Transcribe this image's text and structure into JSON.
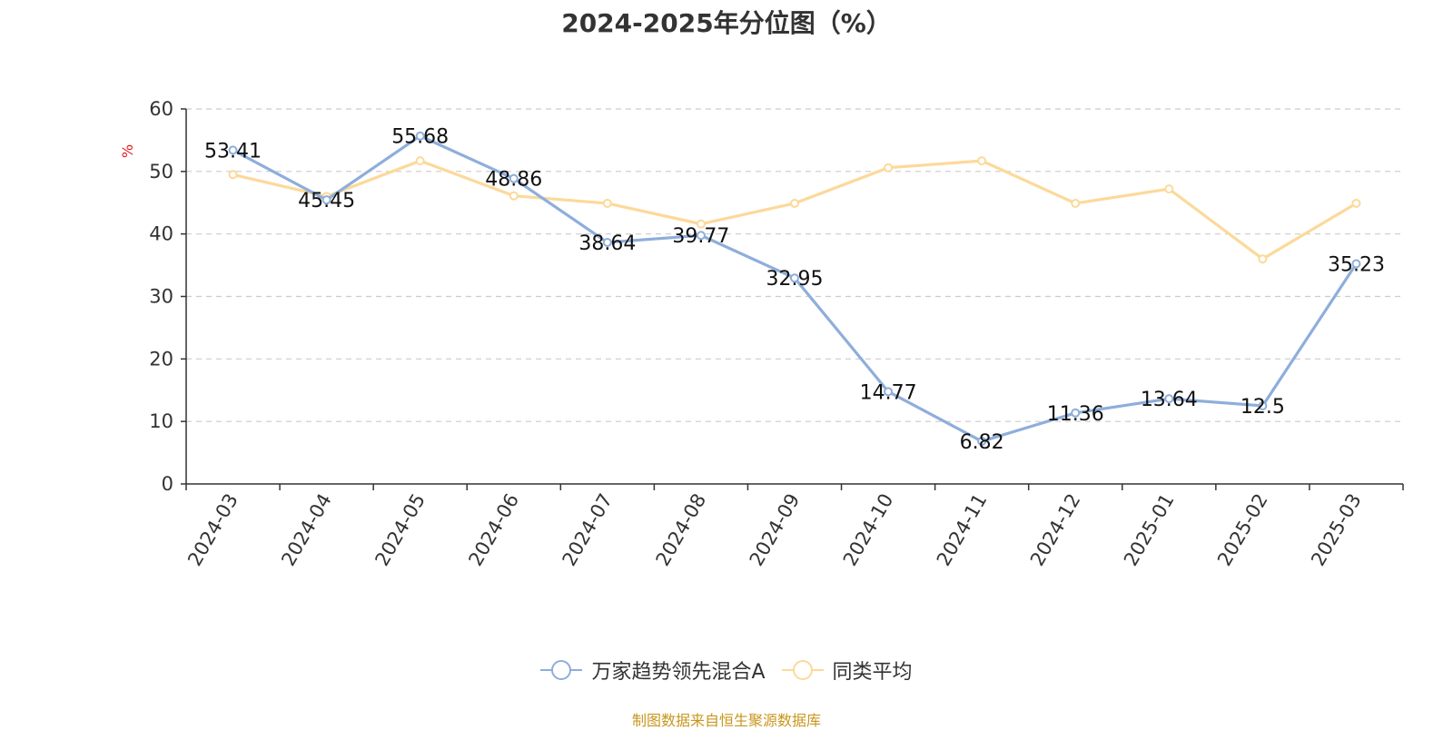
{
  "chart_data": {
    "type": "line",
    "title": "2024-2025年分位图（%）",
    "ylabel": "%",
    "xlabel": "",
    "categories": [
      "2024-03",
      "2024-04",
      "2024-05",
      "2024-06",
      "2024-07",
      "2024-08",
      "2024-09",
      "2024-10",
      "2024-11",
      "2024-12",
      "2025-01",
      "2025-02",
      "2025-03"
    ],
    "ylim": [
      0,
      60
    ],
    "yticks": [
      0,
      10,
      20,
      30,
      40,
      50,
      60
    ],
    "grid": true,
    "legend_position": "bottom",
    "series": [
      {
        "name": "万家趋势领先混合A",
        "color": "#8eaedb",
        "values": [
          53.41,
          45.45,
          55.68,
          48.86,
          38.64,
          39.77,
          32.95,
          14.77,
          6.82,
          11.36,
          13.64,
          12.5,
          35.23
        ],
        "labels": [
          "53.41",
          "45.45",
          "55.68",
          "48.86",
          "38.64",
          "39.77",
          "32.95",
          "14.77",
          "6.82",
          "11.36",
          "13.64",
          "12.5",
          "35.23"
        ]
      },
      {
        "name": "同类平均",
        "color": "#fcd99a",
        "values": [
          49.5,
          46.0,
          51.7,
          46.1,
          44.9,
          41.6,
          44.9,
          50.6,
          51.7,
          44.9,
          47.2,
          36.0,
          44.9
        ]
      }
    ]
  },
  "source": "制图数据来自恒生聚源数据库",
  "colors": {
    "axis": "#333333",
    "grid": "#cccccc",
    "ylabel": "#e02020"
  }
}
